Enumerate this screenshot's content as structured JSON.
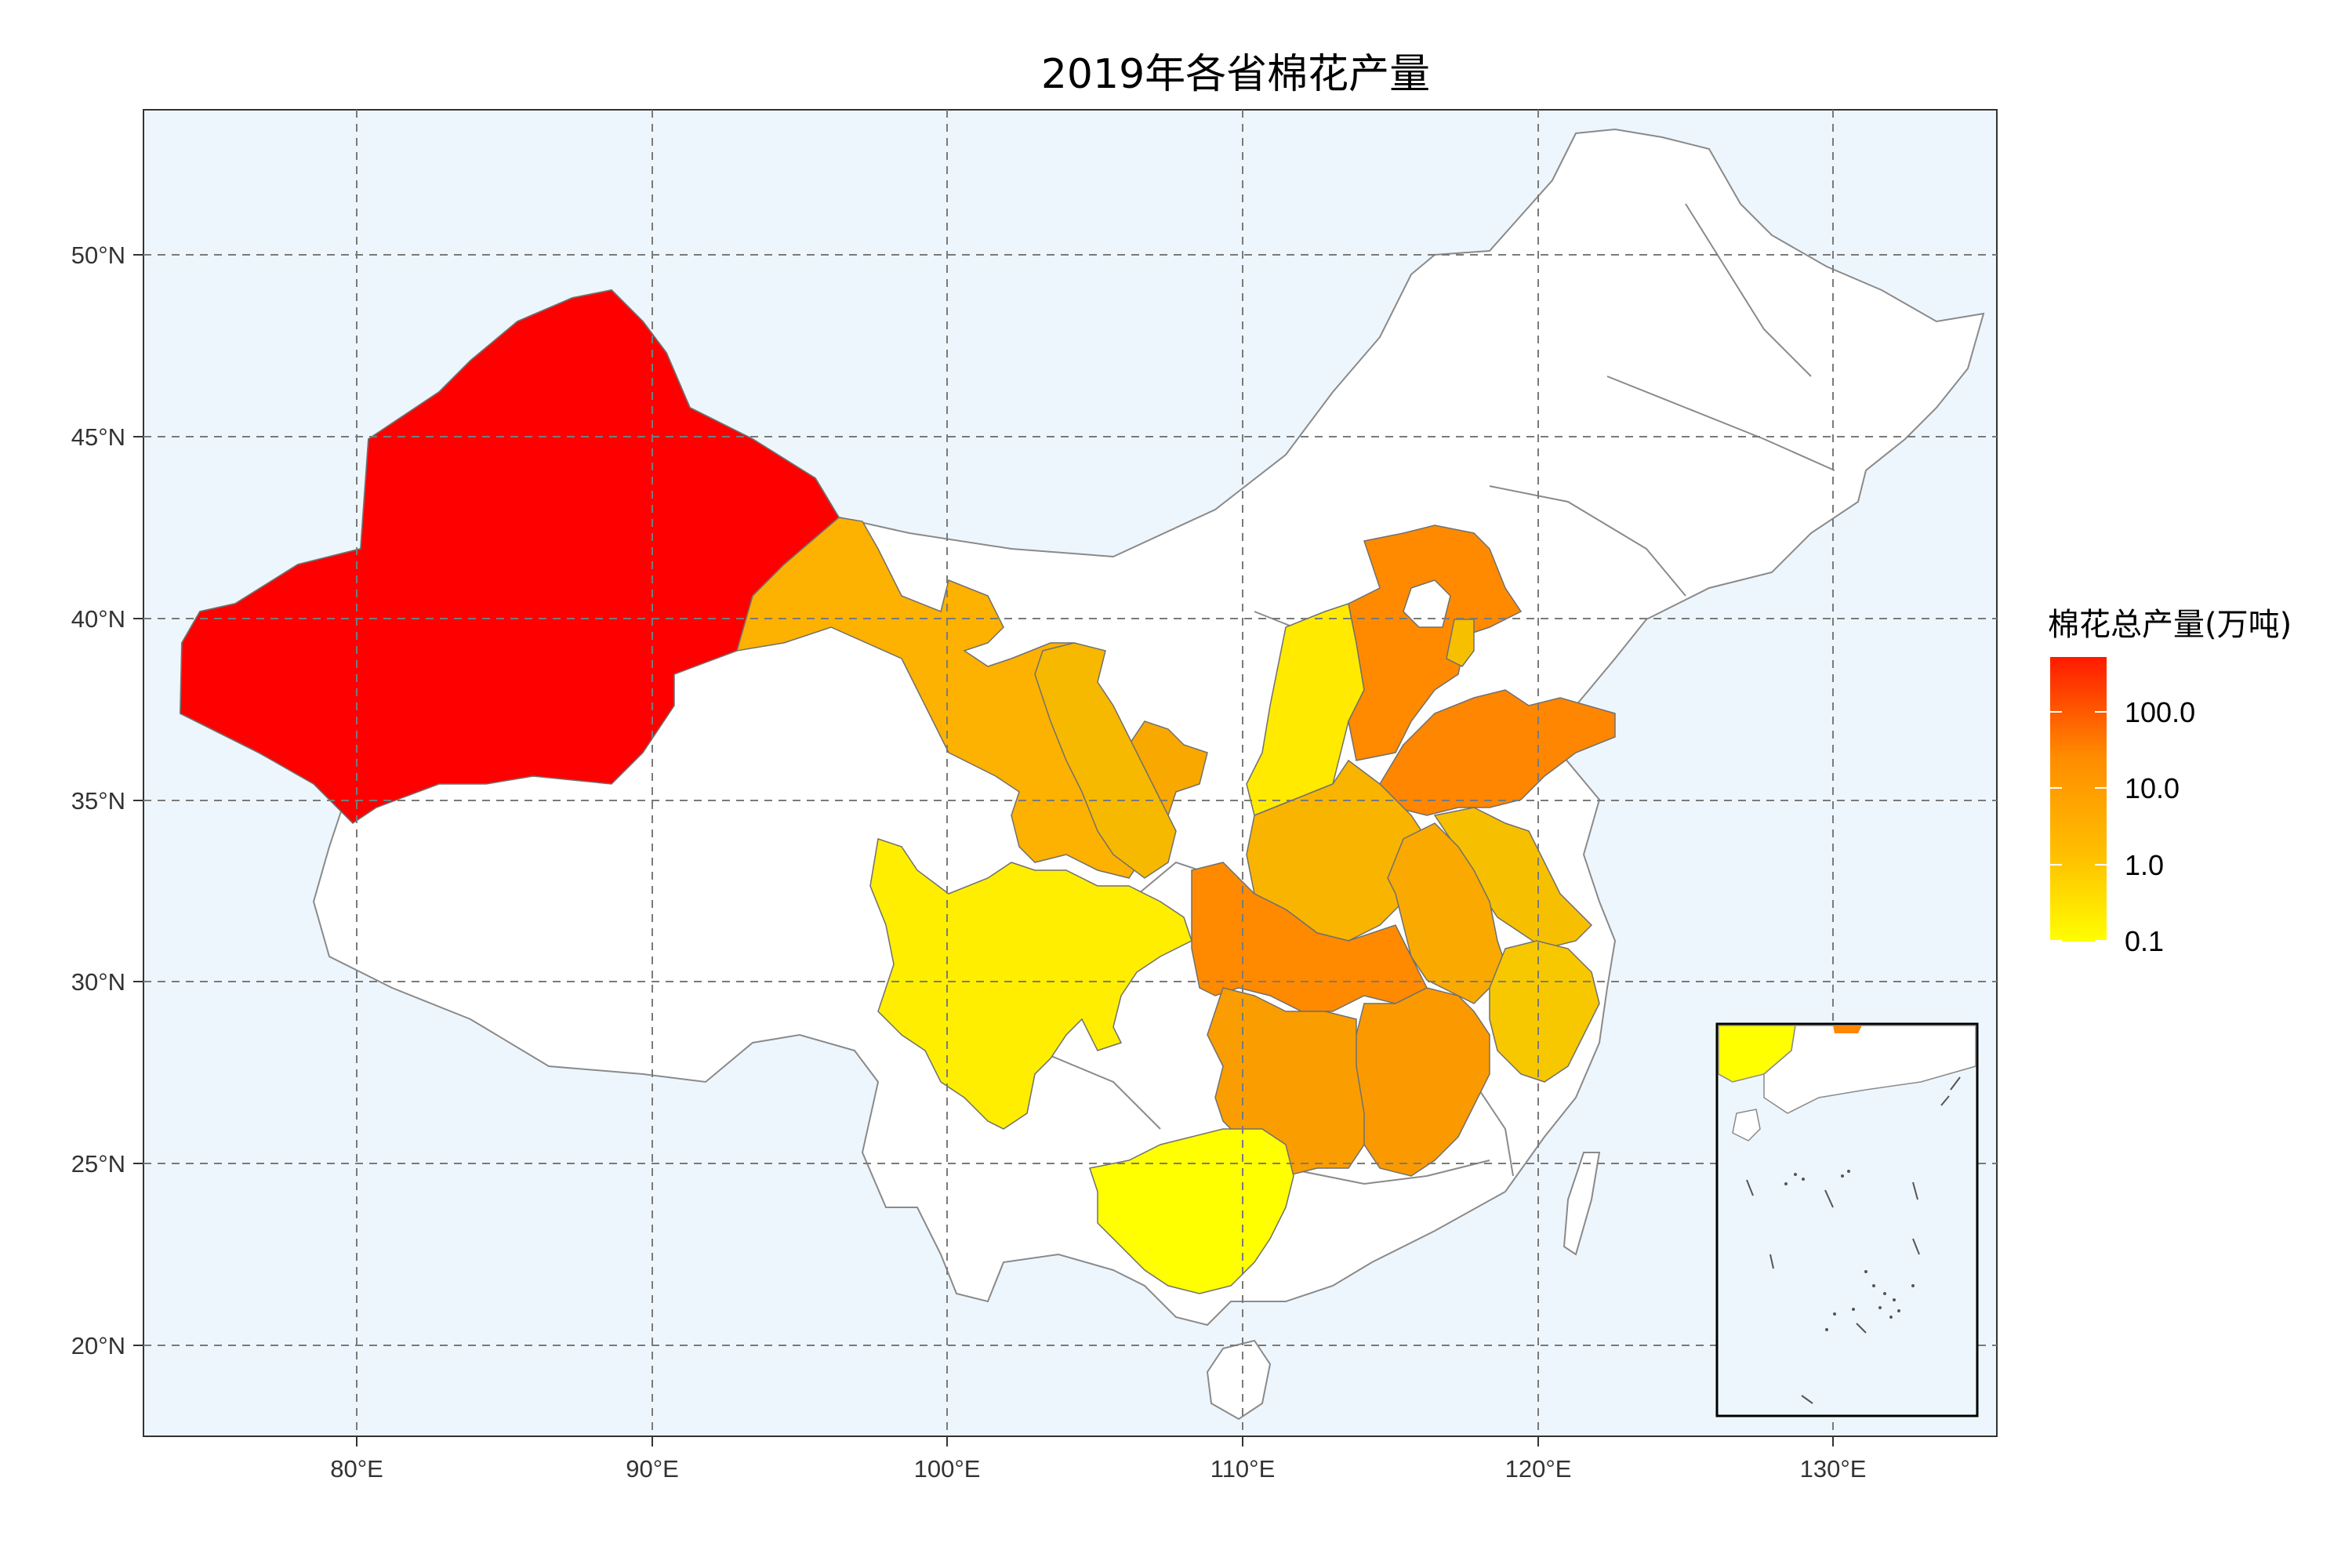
{
  "title": "2019年各省棉花产量",
  "map": {
    "longitude_ticks": [
      "80°E",
      "90°E",
      "100°E",
      "110°E",
      "120°E",
      "130°E"
    ],
    "latitude_ticks": [
      "50°N",
      "45°N",
      "40°N",
      "35°N",
      "30°N",
      "25°N",
      "20°N"
    ],
    "ocean_color": "#eef6fd",
    "land_color": "#ffffff",
    "border_color": "#8a8a8a"
  },
  "legend": {
    "title": "棉花总产量(万吨)",
    "scale": "log",
    "labels": [
      "100.0",
      "10.0",
      "1.0",
      "0.1"
    ],
    "colors": [
      "#ff1a00",
      "#ff8c00",
      "#ffc000",
      "#ffff00"
    ]
  },
  "regions": [
    {
      "id": "xinjiang",
      "color": "#ff0000"
    },
    {
      "id": "gansu",
      "color": "#fdb100"
    },
    {
      "id": "ningxia",
      "color": "#f9a800"
    },
    {
      "id": "sichuan",
      "color": "#ffee00"
    },
    {
      "id": "shanxi",
      "color": "#ffea00"
    },
    {
      "id": "shaanxi",
      "color": "#f7b800"
    },
    {
      "id": "hebei",
      "color": "#ff8a00"
    },
    {
      "id": "shandong",
      "color": "#ff8600"
    },
    {
      "id": "tianjin",
      "color": "#f6c000"
    },
    {
      "id": "henan",
      "color": "#f9b400"
    },
    {
      "id": "anhui",
      "color": "#f9a900"
    },
    {
      "id": "jiangsu",
      "color": "#f6c000"
    },
    {
      "id": "zhejiang",
      "color": "#f7c800"
    },
    {
      "id": "hubei",
      "color": "#ff8a00"
    },
    {
      "id": "hunan",
      "color": "#fa9d00"
    },
    {
      "id": "jiangxi",
      "color": "#fa9a00"
    },
    {
      "id": "guangxi",
      "color": "#ffff00"
    }
  ]
}
